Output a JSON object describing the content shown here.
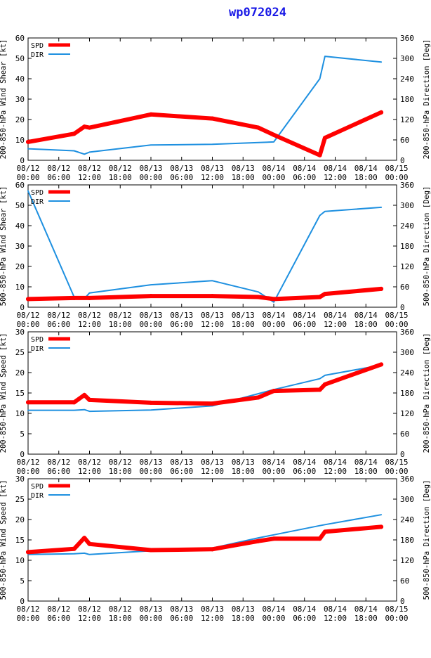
{
  "title": "wp072024",
  "colors": {
    "spd": "#ff0000",
    "dir": "#1e90e0",
    "title": "#1a1ae6"
  },
  "legend": {
    "spd": "SPD",
    "dir": "DIR"
  },
  "x_labels": [
    [
      "08/12",
      "00:00"
    ],
    [
      "08/12",
      "06:00"
    ],
    [
      "08/12",
      "12:00"
    ],
    [
      "08/12",
      "18:00"
    ],
    [
      "08/13",
      "00:00"
    ],
    [
      "08/13",
      "06:00"
    ],
    [
      "08/13",
      "12:00"
    ],
    [
      "08/13",
      "18:00"
    ],
    [
      "08/14",
      "00:00"
    ],
    [
      "08/14",
      "06:00"
    ],
    [
      "08/14",
      "12:00"
    ],
    [
      "08/14",
      "18:00"
    ],
    [
      "08/15",
      "00:00"
    ]
  ],
  "chart_data": [
    {
      "type": "line",
      "ylabel_left": "200-850-hPa Wind Shear [kt]",
      "ylabel_right": "200-850-hPa Direction [Deg]",
      "xlim": [
        0,
        72
      ],
      "ylim_left": [
        0,
        60
      ],
      "yticks_left": [
        0,
        10,
        20,
        30,
        40,
        50,
        60
      ],
      "ylim_right": [
        0,
        360
      ],
      "yticks_right": [
        0,
        60,
        120,
        180,
        240,
        300,
        360
      ],
      "series": [
        {
          "name": "SPD",
          "axis": "left",
          "x": [
            0,
            9,
            11,
            12,
            24,
            36,
            45,
            48,
            57,
            58,
            69
          ],
          "values": [
            9,
            13,
            16.5,
            16,
            22.5,
            20.5,
            16,
            12.5,
            2.5,
            11,
            23.5
          ]
        },
        {
          "name": "DIR",
          "axis": "right",
          "x": [
            0,
            9,
            11,
            12,
            24,
            36,
            48,
            57,
            58,
            69
          ],
          "values": [
            34,
            28,
            18,
            24,
            45,
            47,
            54,
            240,
            306,
            289
          ]
        }
      ]
    },
    {
      "type": "line",
      "ylabel_left": "500-850-hPa Wind Shear [kt]",
      "ylabel_right": "500-850-hPa Direction [Deg]",
      "xlim": [
        0,
        72
      ],
      "ylim_left": [
        0,
        60
      ],
      "yticks_left": [
        0,
        10,
        20,
        30,
        40,
        50,
        60
      ],
      "ylim_right": [
        0,
        360
      ],
      "yticks_right": [
        0,
        60,
        120,
        180,
        240,
        300,
        360
      ],
      "series": [
        {
          "name": "SPD",
          "axis": "left",
          "x": [
            0,
            9,
            12,
            24,
            36,
            45,
            48,
            57,
            58,
            69
          ],
          "values": [
            4,
            4.5,
            4.5,
            5.5,
            5.5,
            5,
            4,
            5,
            6.5,
            9
          ]
        },
        {
          "name": "DIR",
          "axis": "right",
          "x": [
            0,
            9,
            11,
            12,
            24,
            36,
            45,
            48,
            57,
            58,
            69
          ],
          "values": [
            342,
            30,
            25,
            42,
            66,
            78,
            45,
            15,
            270,
            282,
            294
          ]
        }
      ]
    },
    {
      "type": "line",
      "ylabel_left": "200-850-hPa Wind Speed [kt]",
      "ylabel_right": "200-850-hPa Direction [Deg]",
      "xlim": [
        0,
        72
      ],
      "ylim_left": [
        0,
        30
      ],
      "yticks_left": [
        0,
        5,
        10,
        15,
        20,
        25,
        30
      ],
      "ylim_right": [
        0,
        360
      ],
      "yticks_right": [
        0,
        60,
        120,
        180,
        240,
        300,
        360
      ],
      "series": [
        {
          "name": "SPD",
          "axis": "left",
          "x": [
            0,
            9,
            11,
            12,
            24,
            36,
            45,
            48,
            57,
            58,
            69
          ],
          "values": [
            12.7,
            12.7,
            14.5,
            13.3,
            12.6,
            12.4,
            13.9,
            15.5,
            15.8,
            17.1,
            22
          ]
        },
        {
          "name": "DIR",
          "axis": "right",
          "x": [
            0,
            9,
            11,
            12,
            24,
            36,
            45,
            48,
            57,
            58,
            69
          ],
          "values": [
            129,
            129,
            131,
            126,
            130,
            142,
            178,
            190,
            222,
            232,
            262
          ]
        }
      ]
    },
    {
      "type": "line",
      "ylabel_left": "500-850-hPa Wind Speed [kt]",
      "ylabel_right": "500-850-hPa Direction [Deg]",
      "xlim": [
        0,
        72
      ],
      "ylim_left": [
        0,
        30
      ],
      "yticks_left": [
        0,
        5,
        10,
        15,
        20,
        25,
        30
      ],
      "ylim_right": [
        0,
        360
      ],
      "yticks_right": [
        0,
        60,
        120,
        180,
        240,
        300,
        360
      ],
      "series": [
        {
          "name": "SPD",
          "axis": "left",
          "x": [
            0,
            9,
            11,
            12,
            24,
            36,
            45,
            48,
            57,
            58,
            69
          ],
          "values": [
            12,
            12.8,
            15.5,
            14,
            12.5,
            12.7,
            14.7,
            15.3,
            15.3,
            17,
            18.2
          ]
        },
        {
          "name": "DIR",
          "axis": "right",
          "x": [
            0,
            9,
            11,
            12,
            24,
            36,
            45,
            48,
            57,
            58,
            69
          ],
          "values": [
            137,
            139,
            141,
            137,
            148,
            156,
            186,
            195,
            222,
            225,
            254
          ]
        }
      ]
    }
  ]
}
